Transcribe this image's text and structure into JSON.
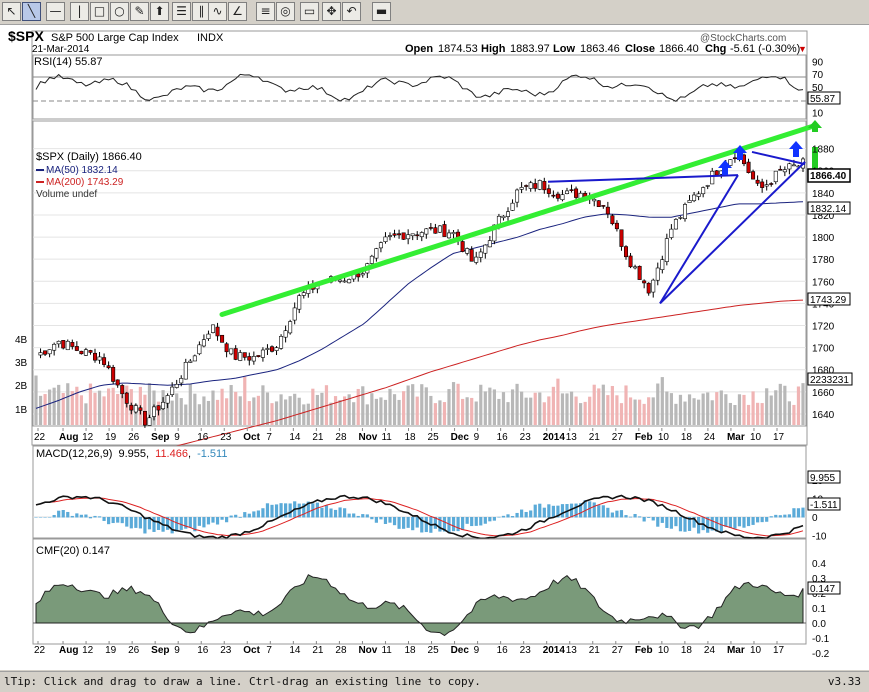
{
  "toolbar": {
    "tools": [
      {
        "name": "select-arrow-tool",
        "glyph": "↖"
      },
      {
        "name": "line-tool",
        "glyph": "╲"
      },
      {
        "name": "horizontal-line-tool",
        "glyph": "—"
      },
      {
        "name": "vertical-line-tool",
        "glyph": "|"
      },
      {
        "name": "rectangle-tool",
        "glyph": "□"
      },
      {
        "name": "ellipse-tool",
        "glyph": "○"
      },
      {
        "name": "text-annotation-tool",
        "glyph": "✎"
      },
      {
        "name": "arrow-annotation-tool",
        "glyph": "⬆"
      },
      {
        "name": "fibonacci-tool",
        "glyph": "☰"
      },
      {
        "name": "vertical-lines-tool",
        "glyph": "∥"
      },
      {
        "name": "wave-tool",
        "glyph": "∿"
      },
      {
        "name": "speed-lines-tool",
        "glyph": "∠"
      },
      {
        "name": "quadrant-lines-tool",
        "glyph": "≡"
      },
      {
        "name": "ellipse-outline-tool",
        "glyph": "◎"
      },
      {
        "name": "raffs-channel-tool",
        "glyph": "▭"
      },
      {
        "name": "pan-tool",
        "glyph": "✥"
      },
      {
        "name": "undo-tool",
        "glyph": "↶"
      },
      {
        "name": "delete-tool",
        "glyph": "▬"
      }
    ]
  },
  "header": {
    "symbol": "$SPX",
    "name": "S&P 500 Large Cap Index",
    "exchange": "INDX",
    "date": "21-Mar-2014",
    "watermark": "@StockCharts.com",
    "open_label": "Open",
    "open": "1874.53",
    "high_label": "High",
    "high": "1883.97",
    "low_label": "Low",
    "low": "1863.46",
    "close_label": "Close",
    "close": "1866.40",
    "chg_label": "Chg",
    "chg": "-5.61 (-0.30%)",
    "chg_arrow": "▼"
  },
  "rsi_panel": {
    "label": "RSI(14) 55.87",
    "value_tag": "55.87",
    "ticks": [
      "90",
      "70",
      "50",
      "30",
      "10"
    ]
  },
  "price_panel": {
    "legend_main": "$SPX (Daily) 1866.40",
    "legend_ma50": "MA(50) 1832.14",
    "legend_ma200": "MA(200) 1743.29",
    "legend_volume": "Volume undef",
    "close_tag": "1866.40",
    "ma50_tag": "1832.14",
    "ma200_tag": "1743.29",
    "volume_tag": "2233231",
    "ticks": [
      "1880",
      "1860",
      "1840",
      "1820",
      "1800",
      "1780",
      "1760",
      "1740",
      "1720",
      "1700",
      "1680",
      "1660",
      "1640"
    ],
    "volume_ticks": [
      "4B",
      "3B",
      "2B",
      "1B"
    ]
  },
  "macd_panel": {
    "label_prefix": "MACD(12,26,9)",
    "macd": "9.955",
    "signal": "11.466",
    "histogram": "-1.511",
    "macd_tag": "9.955",
    "hist_tag": "-1.511",
    "ticks": [
      "20",
      "10",
      "0",
      "-10"
    ]
  },
  "cmf_panel": {
    "label": "CMF(20) 0.147",
    "value_tag": "0.147",
    "ticks": [
      "0.4",
      "0.3",
      "0.2",
      "0.1",
      "0.0",
      "-0.1",
      "-0.2"
    ]
  },
  "xaxis": {
    "labels": [
      "22",
      "Aug",
      "12",
      "19",
      "26",
      "Sep",
      "9",
      "16",
      "23",
      "Oct",
      "7",
      "14",
      "21",
      "28",
      "Nov",
      "11",
      "18",
      "25",
      "Dec",
      "9",
      "16",
      "23",
      "2014",
      "13",
      "21",
      "27",
      "Feb",
      "10",
      "18",
      "24",
      "Mar",
      "10",
      "17"
    ]
  },
  "colors": {
    "up_candle": "#ffffff",
    "down_candle": "#cc0000",
    "ma50": "#1a237e",
    "ma200": "#cc2222",
    "green_trend": "#33ee33",
    "blue_trend": "#1a1acc",
    "arrow": "#1133ff",
    "vol_up": "#b8b8b8",
    "vol_down": "#f0b4b4",
    "macd_hist": "#5aaad8",
    "cmf_fill": "#7a9a7a",
    "cmf_neg": "#b08888"
  },
  "status": {
    "text": "lTip: Click and drag to draw a line. Ctrl-drag an existing line to copy.",
    "version": "v3.33"
  },
  "chart_data": {
    "type": "candlestick",
    "title": "$SPX S&P 500 Large Cap Index INDX",
    "ylim": [
      1630,
      1905
    ],
    "x": [
      "Jul 22",
      "Jul 29",
      "Aug 5",
      "Aug 12",
      "Aug 19",
      "Aug 26",
      "Sep 3",
      "Sep 9",
      "Sep 16",
      "Sep 23",
      "Sep 30",
      "Oct 7",
      "Oct 14",
      "Oct 21",
      "Oct 28",
      "Nov 4",
      "Nov 11",
      "Nov 18",
      "Nov 25",
      "Dec 2",
      "Dec 9",
      "Dec 16",
      "Dec 23",
      "Dec 30",
      "Jan 6",
      "Jan 13",
      "Jan 21",
      "Jan 27",
      "Feb 3",
      "Feb 10",
      "Feb 18",
      "Feb 24",
      "Mar 3",
      "Mar 10",
      "Mar 17",
      "Mar 21"
    ],
    "close": [
      1692,
      1706,
      1697,
      1691,
      1656,
      1633,
      1656,
      1687,
      1720,
      1692,
      1691,
      1703,
      1745,
      1760,
      1762,
      1770,
      1798,
      1804,
      1806,
      1805,
      1775,
      1811,
      1842,
      1848,
      1838,
      1840,
      1828,
      1782,
      1752,
      1808,
      1836,
      1859,
      1878,
      1842,
      1860,
      1866
    ],
    "ma50": [
      1645,
      1652,
      1660,
      1666,
      1668,
      1667,
      1666,
      1667,
      1670,
      1672,
      1676,
      1680,
      1688,
      1698,
      1710,
      1722,
      1740,
      1758,
      1772,
      1785,
      1790,
      1795,
      1800,
      1807,
      1812,
      1818,
      1821,
      1820,
      1818,
      1818,
      1822,
      1826,
      1830,
      1830,
      1831,
      1832
    ],
    "ma200": [
      1578,
      1584,
      1590,
      1596,
      1601,
      1605,
      1609,
      1614,
      1619,
      1624,
      1629,
      1634,
      1640,
      1646,
      1652,
      1658,
      1664,
      1671,
      1678,
      1684,
      1690,
      1696,
      1702,
      1707,
      1711,
      1716,
      1720,
      1723,
      1726,
      1729,
      1732,
      1735,
      1738,
      1740,
      1742,
      1743
    ],
    "annotations": [
      {
        "type": "trendline",
        "color": "green",
        "from": [
          "Sep 18",
          1730
        ],
        "to": [
          "Mar 24",
          1900
        ]
      },
      {
        "type": "trendline",
        "color": "blue",
        "from": [
          "Dec 30",
          1850
        ],
        "to": [
          "Feb 20",
          1850
        ]
      },
      {
        "type": "arrow",
        "direction": "up",
        "color": "blue"
      },
      {
        "type": "arrow",
        "direction": "up",
        "color": "green"
      }
    ],
    "rsi": {
      "value": 55.87,
      "ylim": [
        0,
        100
      ]
    },
    "macd": {
      "macd": 9.955,
      "signal": 11.466,
      "histogram": -1.511,
      "ylim": [
        -15,
        25
      ]
    },
    "cmf": {
      "value": 0.147,
      "ylim": [
        -0.25,
        0.45
      ]
    }
  }
}
